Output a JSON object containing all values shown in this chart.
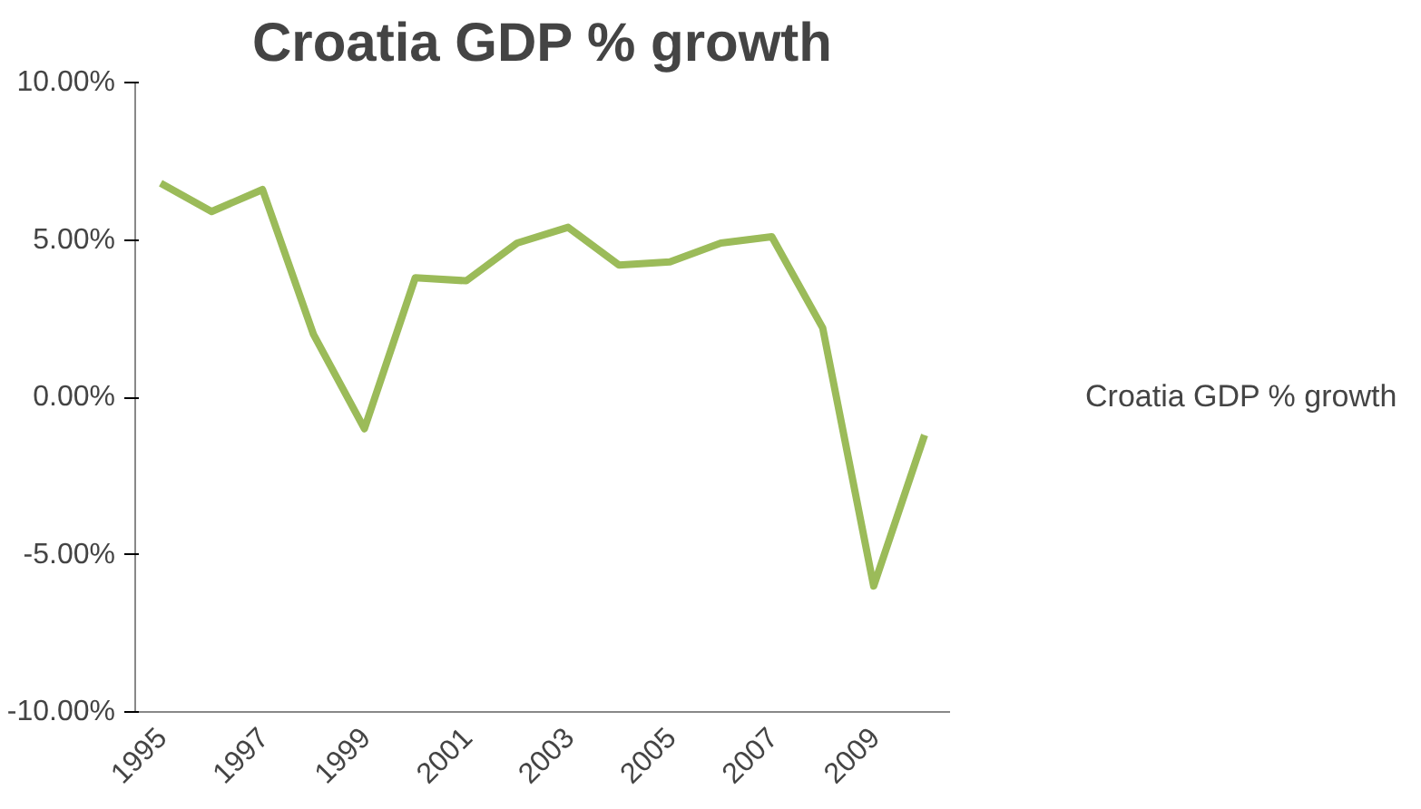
{
  "chart_data": {
    "type": "line",
    "title": "Croatia GDP % growth",
    "categories": [
      "1995",
      null,
      "1997",
      null,
      "1999",
      null,
      "2001",
      null,
      "2003",
      null,
      "2005",
      null,
      "2007",
      null,
      "2009",
      null
    ],
    "series": [
      {
        "name": "Croatia GDP % growth",
        "color": "#9bbb59",
        "values": [
          6.8,
          5.9,
          6.6,
          2.0,
          -1.0,
          3.8,
          3.7,
          4.9,
          5.4,
          4.2,
          4.3,
          4.9,
          5.1,
          2.2,
          -6.0,
          -1.2
        ]
      }
    ],
    "ylim": [
      -10,
      10
    ],
    "yticks": [
      {
        "value": -10,
        "label": "-10.00%"
      },
      {
        "value": -5,
        "label": "-5.00%"
      },
      {
        "value": 0,
        "label": "0.00%"
      },
      {
        "value": 5,
        "label": "5.00%"
      },
      {
        "value": 10,
        "label": "10.00%"
      }
    ],
    "grid": false,
    "legend": "right",
    "marker": "none",
    "line_style": "solid"
  }
}
